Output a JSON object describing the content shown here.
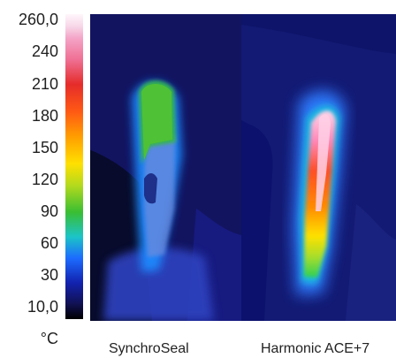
{
  "scale": {
    "ticks": [
      "260,0",
      "240",
      "210",
      "180",
      "150",
      "120",
      "90",
      "60",
      "30",
      "10,0"
    ],
    "unit": "°C"
  },
  "captions": {
    "left": "SynchroSeal",
    "right": "Harmonic ACE+7"
  },
  "colors": {
    "hot_white": "#fff6fb",
    "pink": "#f4a3c6",
    "red": "#e52c2a",
    "orange": "#ff9d00",
    "yellow": "#ffe000",
    "green": "#39be33",
    "cyan": "#1cc4c7",
    "blue": "#1c6cff",
    "navy": "#111153",
    "black": "#000000"
  }
}
